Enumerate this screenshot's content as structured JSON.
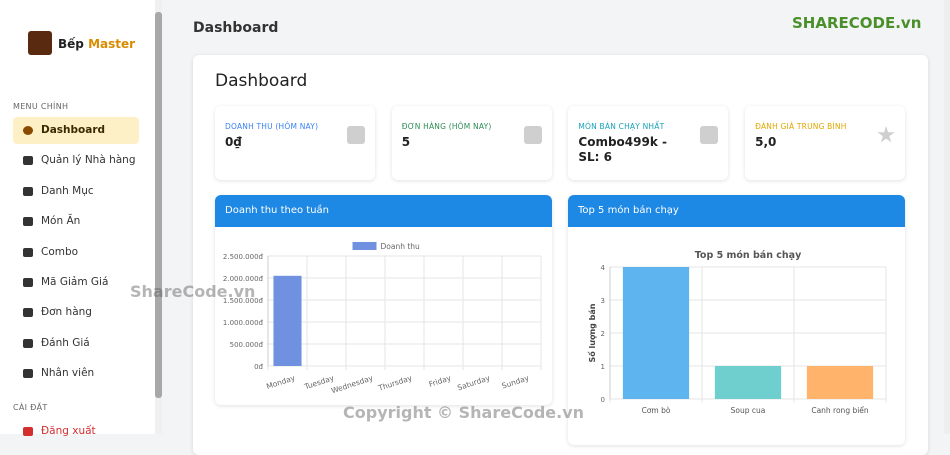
{
  "sidebar": {
    "brand_first": "Bếp",
    "brand_second": "Master",
    "section_main": "MENU CHÍNH",
    "items": [
      "Dashboard",
      "Quản lý Nhà hàng",
      "Danh Mục",
      "Món Ăn",
      "Combo",
      "Mã Giảm Giá",
      "Đơn hàng",
      "Đánh Giá",
      "Nhân viên"
    ],
    "section_settings": "CÀI ĐẶT",
    "logout": "Đăng xuất"
  },
  "header": {
    "title": "Dashboard"
  },
  "content": {
    "title": "Dashboard",
    "stats": [
      {
        "label": "DOANH THU (HÔM NAY)",
        "value": "0₫",
        "color": "#3b82f6"
      },
      {
        "label": "ĐƠN HÀNG (HÔM NAY)",
        "value": "5",
        "color": "#2e8b57"
      },
      {
        "label": "MÓN BÁN CHẠY NHẤT",
        "value": "Combo499k  - SL: 6",
        "color": "#17a2b8"
      },
      {
        "label": "ĐÁNH GIÁ TRUNG BÌNH",
        "value": "5,0",
        "color": "#e0a800"
      }
    ]
  },
  "charts": [
    {
      "type": "bar",
      "header": "Doanh thu theo tuần",
      "legend": "Doanh thu",
      "color": "#7090e0",
      "categories": [
        "Monday",
        "Tuesday",
        "Wednesday",
        "Thursday",
        "Friday",
        "Saturday",
        "Sunday"
      ],
      "values": [
        2050000,
        0,
        0,
        0,
        0,
        0,
        0
      ],
      "ylim": [
        0,
        2500000
      ],
      "yticks": [
        {
          "value": 0,
          "label": "0đ"
        },
        {
          "value": 500000,
          "label": "500.000đ"
        },
        {
          "value": 1000000,
          "label": "1.000.000đ"
        },
        {
          "value": 1500000,
          "label": "1.500.000đ"
        },
        {
          "value": 2000000,
          "label": "2.000.000đ"
        },
        {
          "value": 2500000,
          "label": "2.500.000đ"
        }
      ],
      "grid": true
    },
    {
      "type": "bar",
      "header": "Top 5 món bán chạy",
      "title": "Top 5 món bán chạy",
      "ylabel": "Số lượng bán",
      "categories": [
        "Cơm bò",
        "Soup cua",
        "Canh rong biển"
      ],
      "values": [
        4,
        1,
        1
      ],
      "colors": [
        "#5eb4ee",
        "#6fcfcf",
        "#ffb36b"
      ],
      "ylim": [
        0,
        4
      ],
      "yticks": [
        0,
        1,
        2,
        3,
        4
      ],
      "grid": true
    }
  ],
  "watermarks": {
    "logo": "SHARECODE.vn",
    "center": "ShareCode.vn",
    "footer": "Copyright © ShareCode.vn"
  }
}
